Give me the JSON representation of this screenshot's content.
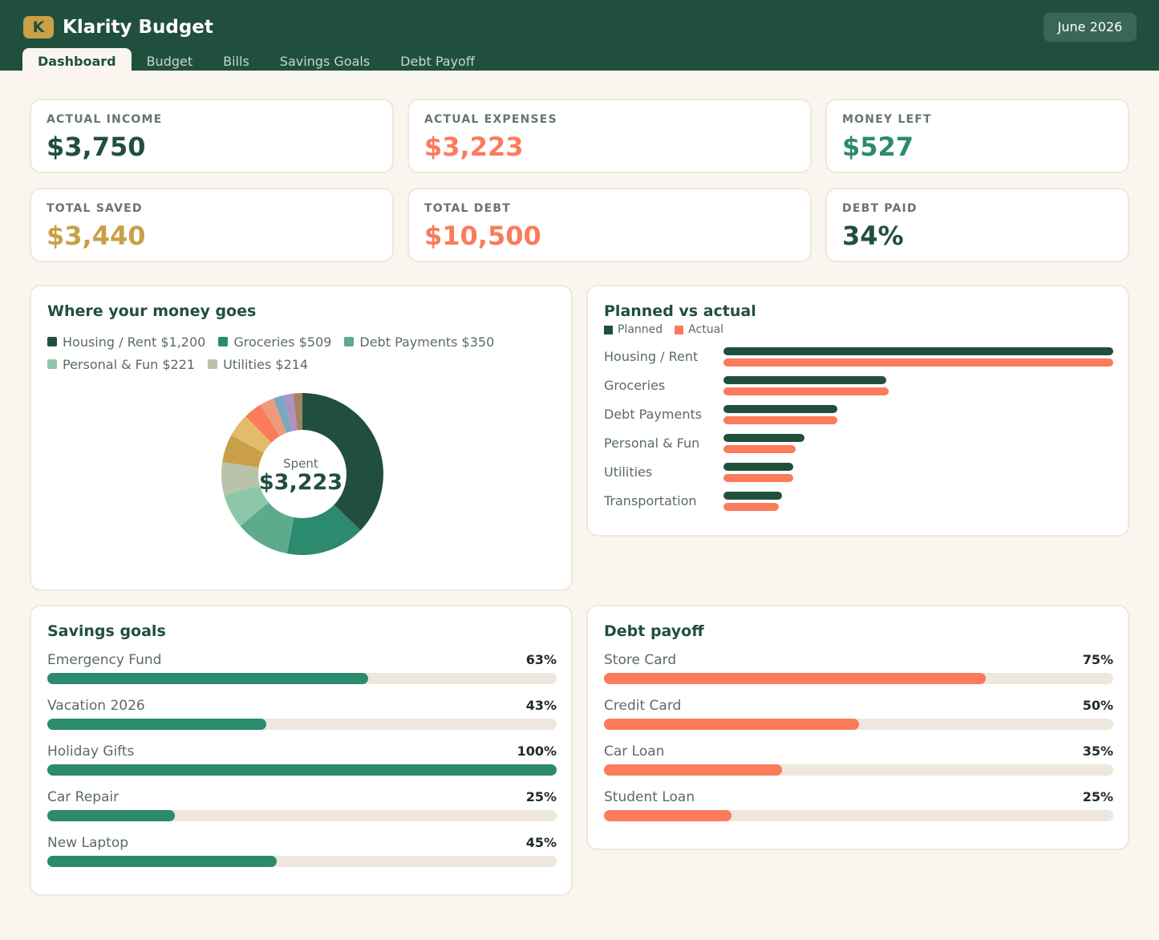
{
  "app": {
    "logo_letter": "K",
    "title": "Klarity Budget",
    "month": "June 2026"
  },
  "tabs": [
    {
      "label": "Dashboard",
      "active": true
    },
    {
      "label": "Budget"
    },
    {
      "label": "Bills"
    },
    {
      "label": "Savings Goals"
    },
    {
      "label": "Debt Payoff"
    }
  ],
  "kpis": [
    {
      "label": "ACTUAL INCOME",
      "value": "$3,750",
      "color": "#214f3e"
    },
    {
      "label": "ACTUAL EXPENSES",
      "value": "$3,223",
      "color": "#fb7b5b"
    },
    {
      "label": "MONEY LEFT",
      "value": "$527",
      "color": "#2c8a6e"
    },
    {
      "label": "TOTAL SAVED",
      "value": "$3,440",
      "color": "#c9a047"
    },
    {
      "label": "TOTAL DEBT",
      "value": "$10,500",
      "color": "#fb7b5b"
    },
    {
      "label": "DEBT PAID",
      "value": "34%",
      "color": "#214f3e"
    }
  ],
  "spending": {
    "title": "Where your money goes",
    "center_label": "Spent",
    "center_value": "$3,223",
    "legend": [
      {
        "text": "Housing / Rent $1,200",
        "color": "#214f3e"
      },
      {
        "text": "Groceries $509",
        "color": "#2c8a6e"
      },
      {
        "text": "Debt Payments $350",
        "color": "#5daa8c"
      },
      {
        "text": "Personal & Fun $221",
        "color": "#8cc7a9"
      },
      {
        "text": "Utilities $214",
        "color": "#b9c3a9"
      }
    ],
    "chart_data": {
      "type": "pie",
      "slices": [
        {
          "value": 1200,
          "color": "#214f3e"
        },
        {
          "value": 509,
          "color": "#2c8a6e"
        },
        {
          "value": 350,
          "color": "#5daa8c"
        },
        {
          "value": 221,
          "color": "#8cc7a9"
        },
        {
          "value": 214,
          "color": "#b9c3a9"
        },
        {
          "value": 180,
          "color": "#c9a047"
        },
        {
          "value": 150,
          "color": "#e3bb6a"
        },
        {
          "value": 120,
          "color": "#fb7b5b"
        },
        {
          "value": 90,
          "color": "#ef9a7a"
        },
        {
          "value": 70,
          "color": "#7aa7c2"
        },
        {
          "value": 60,
          "color": "#b191c2"
        },
        {
          "value": 59,
          "color": "#a08560"
        }
      ]
    }
  },
  "planned_vs_actual": {
    "title": "Planned vs actual",
    "legend_planned": "Planned",
    "legend_actual": "Actual",
    "colors": {
      "planned": "#214f3e",
      "actual": "#fb7b5b"
    },
    "chart_data": {
      "type": "bar",
      "orientation": "horizontal",
      "categories": [
        "Housing / Rent",
        "Groceries",
        "Debt Payments",
        "Personal & Fun",
        "Utilities",
        "Transportation"
      ],
      "series": [
        {
          "name": "Planned",
          "values": [
            1200,
            500,
            350,
            250,
            215,
            180
          ]
        },
        {
          "name": "Actual",
          "values": [
            1200,
            509,
            350,
            221,
            214,
            170
          ]
        }
      ]
    }
  },
  "savings": {
    "title": "Savings goals",
    "color": "#2c8a6e",
    "goals": [
      {
        "name": "Emergency Fund",
        "pct_text": "63%",
        "pct": 63
      },
      {
        "name": "Vacation 2026",
        "pct_text": "43%",
        "pct": 43
      },
      {
        "name": "Holiday Gifts",
        "pct_text": "100%",
        "pct": 100
      },
      {
        "name": "Car Repair",
        "pct_text": "25%",
        "pct": 25
      },
      {
        "name": "New Laptop",
        "pct_text": "45%",
        "pct": 45
      }
    ]
  },
  "debt": {
    "title": "Debt payoff",
    "color": "#fb7b5b",
    "items": [
      {
        "name": "Store Card",
        "pct_text": "75%",
        "pct": 75
      },
      {
        "name": "Credit Card",
        "pct_text": "50%",
        "pct": 50
      },
      {
        "name": "Car Loan",
        "pct_text": "35%",
        "pct": 35
      },
      {
        "name": "Student Loan",
        "pct_text": "25%",
        "pct": 25
      }
    ]
  }
}
